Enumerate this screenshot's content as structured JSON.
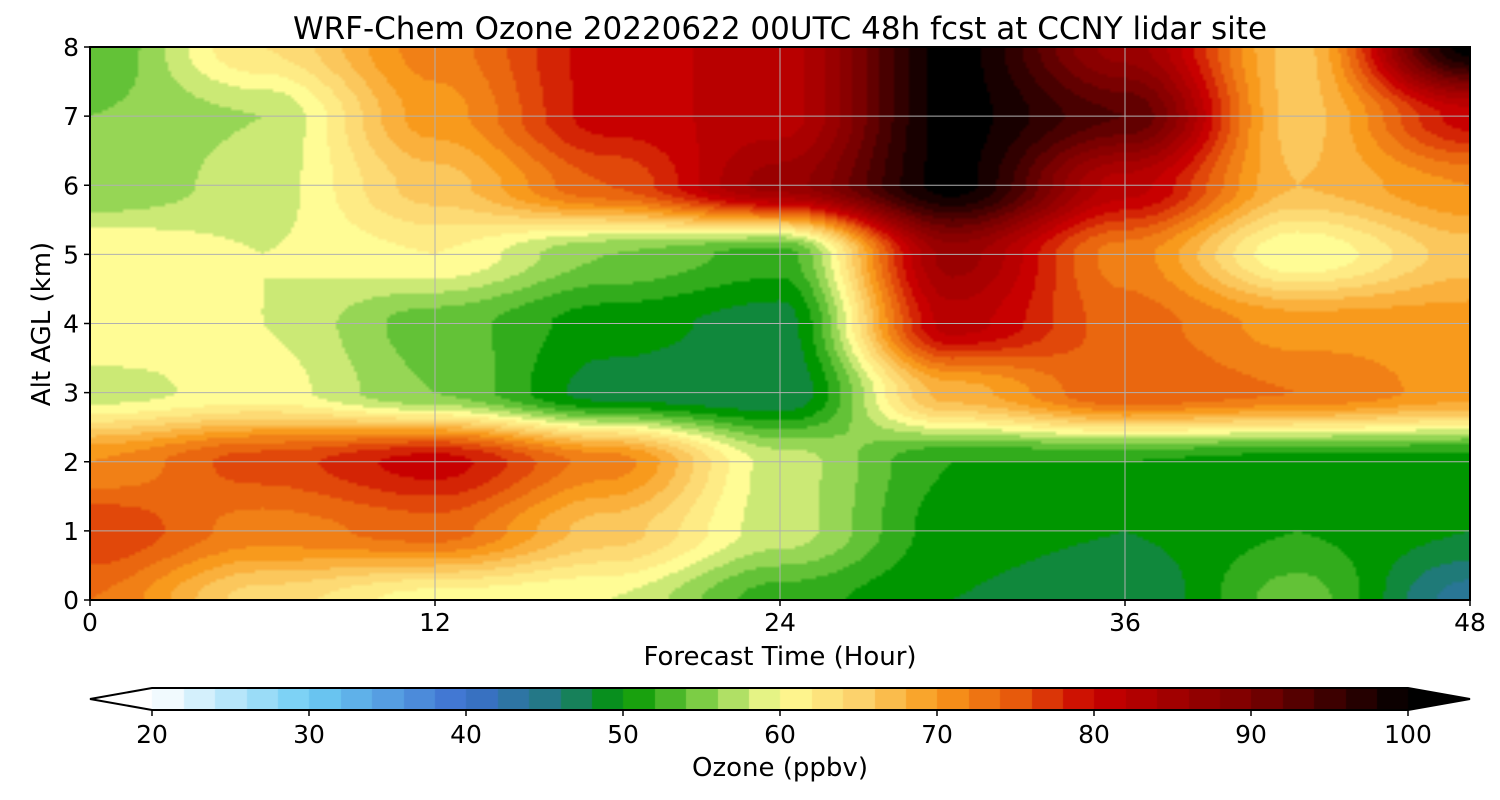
{
  "chart_data": {
    "type": "heatmap",
    "title": "WRF-Chem Ozone  20220622 00UTC 48h fcst at CCNY lidar site",
    "xlabel": "Forecast Time (Hour)",
    "ylabel": "Alt AGL (km)",
    "xlim": [
      0,
      48
    ],
    "ylim": [
      0,
      8
    ],
    "x_ticks": [
      0,
      12,
      24,
      36,
      48
    ],
    "y_ticks": [
      0,
      1,
      2,
      3,
      4,
      5,
      6,
      7,
      8
    ],
    "grid": true,
    "colorbar": {
      "label": "Ozone  (ppbv)",
      "min": 20,
      "max": 100,
      "ticks": [
        20,
        30,
        40,
        50,
        60,
        70,
        80,
        90,
        100
      ],
      "extend": "both",
      "orientation": "horizontal"
    },
    "hours": [
      0,
      6,
      12,
      18,
      24,
      30,
      36,
      42,
      48
    ],
    "altitudes_km": [
      0,
      1,
      2,
      3,
      4,
      5,
      6,
      7,
      8
    ],
    "ozone_ppbv": [
      [
        73,
        64,
        60,
        59,
        52,
        49,
        47,
        54,
        44
      ],
      [
        77,
        72,
        74,
        66,
        58,
        50,
        49,
        51,
        49
      ],
      [
        71,
        76,
        80,
        72,
        58,
        51,
        51,
        50,
        50
      ],
      [
        58,
        60,
        55,
        48,
        47,
        68,
        75,
        73,
        70
      ],
      [
        61,
        59,
        54,
        50,
        48,
        82,
        74,
        70,
        70
      ],
      [
        61,
        59,
        61,
        55,
        52,
        86,
        72,
        59,
        66
      ],
      [
        55,
        58,
        66,
        75,
        86,
        100,
        82,
        67,
        71
      ],
      [
        55,
        57,
        70,
        80,
        82,
        100,
        93,
        66,
        80
      ],
      [
        53,
        63,
        72,
        80,
        82,
        100,
        86,
        66,
        100
      ]
    ],
    "colormap_stops": [
      {
        "v": 20,
        "c": "#ffffff"
      },
      {
        "v": 30,
        "c": "#6ecdf4"
      },
      {
        "v": 40,
        "c": "#3d6fcf"
      },
      {
        "v": 46,
        "c": "#1f7a78"
      },
      {
        "v": 50,
        "c": "#009600"
      },
      {
        "v": 55,
        "c": "#7ccd45"
      },
      {
        "v": 60,
        "c": "#fffc95"
      },
      {
        "v": 65,
        "c": "#fcd26c"
      },
      {
        "v": 70,
        "c": "#f89a1c"
      },
      {
        "v": 75,
        "c": "#e75a0c"
      },
      {
        "v": 80,
        "c": "#c80000"
      },
      {
        "v": 90,
        "c": "#7a0000"
      },
      {
        "v": 100,
        "c": "#000000"
      }
    ]
  }
}
